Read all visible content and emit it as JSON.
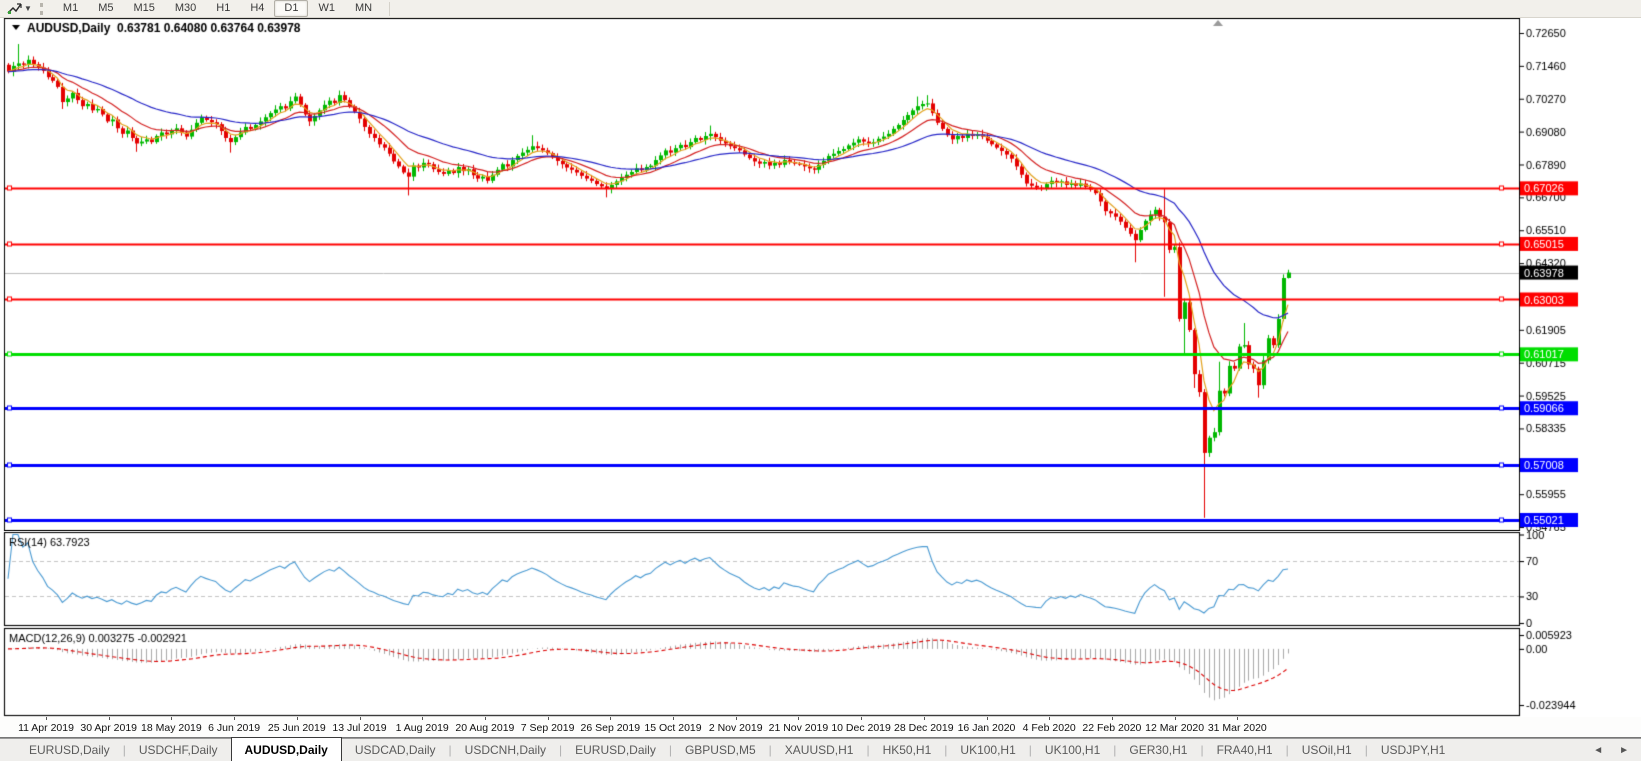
{
  "toolbar": {
    "timeframes": [
      "M1",
      "M5",
      "M15",
      "M30",
      "H1",
      "H4",
      "D1",
      "W1",
      "MN"
    ],
    "active_timeframe": "D1"
  },
  "chart_data": {
    "type": "candlestick",
    "symbol": "AUDUSD",
    "timeframe": "Daily",
    "title_line": "AUDUSD,Daily  0.63781 0.64080 0.63764 0.63978",
    "ohlc": {
      "open": "0.63781",
      "high": "0.64080",
      "low": "0.63764",
      "close": "0.63978"
    },
    "current_price": {
      "value": 0.63978,
      "label": "0.63978",
      "line_color": "#bcbcbc",
      "box_color": "#000000"
    },
    "price_axis_ticks": [
      "0.72650",
      "0.71460",
      "0.70270",
      "0.69080",
      "0.67890",
      "0.66700",
      "0.65510",
      "0.64320",
      "0.61905",
      "0.60715",
      "0.59525",
      "0.58335",
      "0.55955",
      "0.54765"
    ],
    "levels": [
      {
        "label": "0.67026",
        "value": 0.67026,
        "color": "#FF0000",
        "lw": 2
      },
      {
        "label": "0.65015",
        "value": 0.65015,
        "color": "#FF0000",
        "lw": 2
      },
      {
        "label": "0.63003",
        "value": 0.63003,
        "color": "#FF0000",
        "lw": 2
      },
      {
        "label": "0.61017",
        "value": 0.61017,
        "color": "#00DE00",
        "lw": 3
      },
      {
        "label": "0.59066",
        "value": 0.59066,
        "color": "#0000FF",
        "lw": 3
      },
      {
        "label": "0.57008",
        "value": 0.57008,
        "color": "#0000FF",
        "lw": 3
      },
      {
        "label": "0.55021",
        "value": 0.55021,
        "color": "#0000FF",
        "lw": 3
      }
    ],
    "moving_averages": [
      {
        "period": 5,
        "color": "#e3a21e"
      },
      {
        "period": 13,
        "color": "#d42222"
      },
      {
        "period": 34,
        "color": "#2626c8"
      }
    ],
    "candle_colors": {
      "bull": "#00b800",
      "bear": "#e40000"
    },
    "closes": [
      0.7125,
      0.7146,
      0.7155,
      0.715,
      0.7168,
      0.7152,
      0.714,
      0.7128,
      0.7105,
      0.7092,
      0.707,
      0.7015,
      0.7028,
      0.7048,
      0.7022,
      0.7,
      0.7008,
      0.6985,
      0.699,
      0.697,
      0.6945,
      0.6952,
      0.692,
      0.69,
      0.6912,
      0.6885,
      0.6865,
      0.6872,
      0.688,
      0.687,
      0.6892,
      0.6905,
      0.6898,
      0.6912,
      0.692,
      0.6905,
      0.689,
      0.6915,
      0.694,
      0.696,
      0.695,
      0.6942,
      0.6935,
      0.691,
      0.6885,
      0.687,
      0.6888,
      0.6905,
      0.6925,
      0.6918,
      0.6932,
      0.6945,
      0.696,
      0.6975,
      0.6988,
      0.7,
      0.6992,
      0.7018,
      0.7035,
      0.7005,
      0.697,
      0.6945,
      0.6965,
      0.6985,
      0.7005,
      0.702,
      0.7012,
      0.704,
      0.7022,
      0.7,
      0.698,
      0.6955,
      0.6925,
      0.69,
      0.6885,
      0.6862,
      0.685,
      0.6828,
      0.68,
      0.6782,
      0.676,
      0.6745,
      0.6785,
      0.6778,
      0.6795,
      0.679,
      0.6772,
      0.6762,
      0.6755,
      0.6768,
      0.6758,
      0.678,
      0.6765,
      0.6772,
      0.675,
      0.6738,
      0.6745,
      0.673,
      0.6752,
      0.677,
      0.679,
      0.6782,
      0.6805,
      0.682,
      0.6832,
      0.6842,
      0.6855,
      0.6848,
      0.684,
      0.683,
      0.6815,
      0.6802,
      0.679,
      0.6778,
      0.677,
      0.676,
      0.6748,
      0.6738,
      0.673,
      0.6718,
      0.671,
      0.67,
      0.6715,
      0.6728,
      0.674,
      0.6752,
      0.6762,
      0.6775,
      0.6768,
      0.678,
      0.6785,
      0.6805,
      0.6822,
      0.684,
      0.6832,
      0.6848,
      0.686,
      0.6852,
      0.687,
      0.6885,
      0.6878,
      0.6892,
      0.69,
      0.6888,
      0.6875,
      0.6865,
      0.6855,
      0.6848,
      0.684,
      0.6825,
      0.6812,
      0.68,
      0.6792,
      0.6798,
      0.6785,
      0.6795,
      0.6788,
      0.6805,
      0.6798,
      0.6792,
      0.679,
      0.6782,
      0.6775,
      0.677,
      0.6788,
      0.6802,
      0.682,
      0.6828,
      0.6838,
      0.6845,
      0.6858,
      0.6868,
      0.688,
      0.6872,
      0.6865,
      0.687,
      0.6882,
      0.689,
      0.69,
      0.6918,
      0.6932,
      0.695,
      0.6968,
      0.6985,
      0.7,
      0.7008,
      0.701,
      0.6975,
      0.694,
      0.6918,
      0.6895,
      0.688,
      0.6892,
      0.6885,
      0.69,
      0.6892,
      0.6898,
      0.689,
      0.6875,
      0.6862,
      0.685,
      0.6838,
      0.6825,
      0.681,
      0.6782,
      0.6752,
      0.672,
      0.6712,
      0.6705,
      0.67,
      0.6718,
      0.673,
      0.6722,
      0.6728,
      0.6715,
      0.6722,
      0.6712,
      0.672,
      0.6708,
      0.6698,
      0.6685,
      0.6655,
      0.662,
      0.6612,
      0.66,
      0.6582,
      0.656,
      0.6538,
      0.6515,
      0.6552,
      0.6585,
      0.6608,
      0.6625,
      0.66,
      0.658,
      0.648,
      0.649,
      0.623,
      0.629,
      0.619,
      0.603,
      0.5965,
      0.5745,
      0.58,
      0.582,
      0.597,
      0.596,
      0.606,
      0.605,
      0.613,
      0.6135,
      0.6065,
      0.605,
      0.599,
      0.608,
      0.616,
      0.6135,
      0.623,
      0.6378,
      0.63978
    ],
    "wick_overrides": {
      "2": {
        "high": 0.7225
      },
      "11": {
        "low": 0.699
      },
      "26": {
        "low": 0.6835
      },
      "45": {
        "low": 0.6832
      },
      "81": {
        "low": 0.6677
      },
      "106": {
        "high": 0.6895
      },
      "121": {
        "low": 0.667
      },
      "142": {
        "high": 0.693
      },
      "184": {
        "high": 0.7035
      },
      "186": {
        "high": 0.704
      },
      "228": {
        "low": 0.6435
      },
      "234": {
        "high": 0.67,
        "low": 0.631
      },
      "238": {
        "low": 0.61
      },
      "240": {
        "low": 0.598
      },
      "242": {
        "low": 0.551
      },
      "245": {
        "high": 0.6075
      },
      "250": {
        "high": 0.6215
      },
      "253": {
        "low": 0.5945
      },
      "259": {
        "open": 0.63781,
        "high": 0.6408,
        "low": 0.63764
      }
    },
    "date_labels": [
      "11 Apr 2019",
      "30 Apr 2019",
      "18 May 2019",
      "6 Jun 2019",
      "25 Jun 2019",
      "13 Jul 2019",
      "1 Aug 2019",
      "20 Aug 2019",
      "7 Sep 2019",
      "26 Sep 2019",
      "15 Oct 2019",
      "2 Nov 2019",
      "21 Nov 2019",
      "10 Dec 2019",
      "28 Dec 2019",
      "16 Jan 2020",
      "4 Feb 2020",
      "22 Feb 2020",
      "12 Mar 2020",
      "31 Mar 2020"
    ]
  },
  "rsi": {
    "label": "RSI(14) 63.7923",
    "period": 14,
    "value": "63.7923",
    "axis_labels": [
      "100",
      "70",
      "30",
      "0"
    ],
    "dashed_levels": [
      70,
      30
    ],
    "line_color": "#4a9ad2"
  },
  "macd": {
    "label": "MACD(12,26,9) 0.003275 -0.002921",
    "params": "12,26,9",
    "main_value": "0.003275",
    "signal_value": "-0.002921",
    "axis_labels": [
      "0.005923",
      "0.00",
      "-0.023944"
    ],
    "axis_values": [
      0.005923,
      0.0,
      -0.023944
    ],
    "histogram_color": "#a9a9a9",
    "signal_color": "#dd0000"
  },
  "tabs": [
    {
      "label": "EURUSD,Daily",
      "active": false
    },
    {
      "label": "USDCHF,Daily",
      "active": false
    },
    {
      "label": "AUDUSD,Daily",
      "active": true
    },
    {
      "label": "USDCAD,Daily",
      "active": false
    },
    {
      "label": "USDCNH,Daily",
      "active": false
    },
    {
      "label": "EURUSD,Daily",
      "active": false
    },
    {
      "label": "GBPUSD,M5",
      "active": false
    },
    {
      "label": "XAUUSD,H1",
      "active": false
    },
    {
      "label": "HK50,H1",
      "active": false
    },
    {
      "label": "UK100,H1",
      "active": false
    },
    {
      "label": "UK100,H1",
      "active": false
    },
    {
      "label": "GER30,H1",
      "active": false
    },
    {
      "label": "FRA40,H1",
      "active": false
    },
    {
      "label": "USOil,H1",
      "active": false
    },
    {
      "label": "USDJPY,H1",
      "active": false
    }
  ],
  "tab_arrows": {
    "left": "◄",
    "right": "►"
  }
}
